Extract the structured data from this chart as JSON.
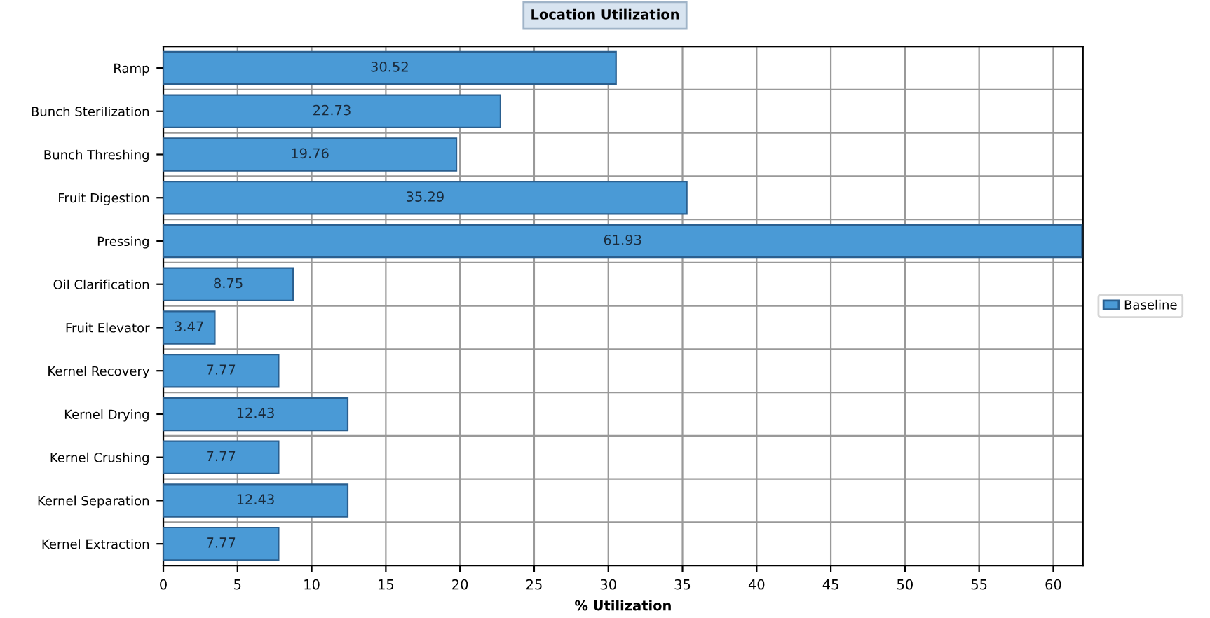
{
  "chart_data": {
    "type": "bar",
    "orientation": "horizontal",
    "title": "Location Utilization",
    "xlabel": "% Utilization",
    "categories": [
      "Ramp",
      "Bunch Sterilization",
      "Bunch Threshing",
      "Fruit Digestion",
      "Pressing",
      "Oil Clarification",
      "Fruit Elevator",
      "Kernel Recovery",
      "Kernel Drying",
      "Kernel Crushing",
      "Kernel Separation",
      "Kernel Extraction"
    ],
    "series": [
      {
        "name": "Baseline",
        "color": "#4a9ad6",
        "values": [
          30.52,
          22.73,
          19.76,
          35.29,
          61.93,
          8.75,
          3.47,
          7.77,
          12.43,
          7.77,
          12.43,
          7.77
        ]
      }
    ],
    "data_labels": true,
    "xlim": [
      0,
      62
    ],
    "xticks": [
      0,
      5,
      10,
      15,
      20,
      25,
      30,
      35,
      40,
      45,
      50,
      55,
      60
    ],
    "grid": true,
    "legend": "right"
  }
}
